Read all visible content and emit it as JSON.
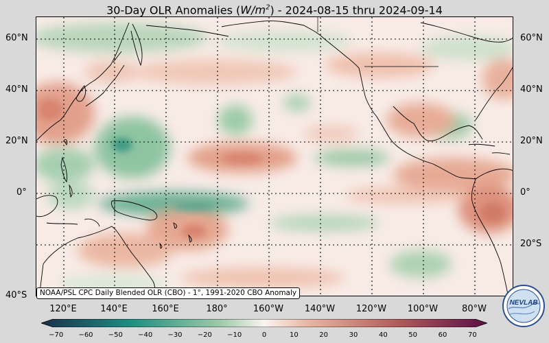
{
  "title": {
    "prefix": "30-Day OLR Anomalies (",
    "units_base": "W/m",
    "units_exp": "2",
    "suffix": ") - 2024-08-15 thru 2024-09-14"
  },
  "lat_labels": [
    "60°N",
    "40°N",
    "20°N",
    "0°",
    "20°S",
    "40°S"
  ],
  "lon_labels": [
    "120°E",
    "140°E",
    "160°E",
    "180°",
    "160°W",
    "140°W",
    "120°W",
    "100°W",
    "80°W"
  ],
  "credit": "NOAA/PSL CPC Daily Blended OLR (CBO) - 1°, 1991-2020 CBO Anomaly",
  "colorbar": {
    "ticks": [
      "−70",
      "−60",
      "−50",
      "−40",
      "−30",
      "−20",
      "−10",
      "0",
      "10",
      "20",
      "30",
      "40",
      "50",
      "60",
      "70"
    ],
    "min": -75,
    "max": 75,
    "colors": {
      "neg_strong": "#1c2f4a",
      "neg_mid": "#1c8f80",
      "neg_light": "#9dc9a8",
      "neutral": "#f9f4f1",
      "pos_light": "#e8b5a2",
      "pos_mid": "#b25a5a",
      "pos_strong": "#5a0f47"
    }
  },
  "logo": {
    "text": "NEVLAB"
  }
}
